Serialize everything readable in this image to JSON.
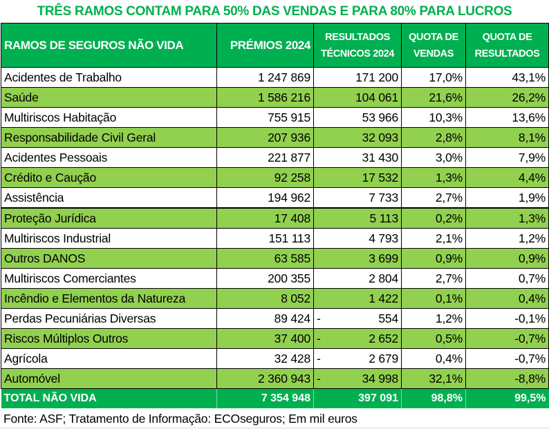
{
  "title": "TRÊS RAMOS CONTAM PARA 50% DAS VENDAS E PARA 80% PARA LUCROS",
  "table": {
    "headers": [
      "RAMOS DE SEGUROS NÃO VIDA",
      "PRÉMIOS 2024",
      "RESULTADOS TÉCNICOS 2024",
      "QUOTA DE VENDAS",
      "QUOTA DE RESULTADOS"
    ],
    "rows": [
      {
        "ramo": "Acidentes de Trabalho",
        "premios": "1 247 869",
        "resultados_sign": "",
        "resultados": "171 200",
        "quota_vendas": "17,0%",
        "quota_resultados": "43,1%"
      },
      {
        "ramo": "Saúde",
        "premios": "1 586 216",
        "resultados_sign": "",
        "resultados": "104 061",
        "quota_vendas": "21,6%",
        "quota_resultados": "26,2%"
      },
      {
        "ramo": "Multiriscos Habitação",
        "premios": "755 915",
        "resultados_sign": "",
        "resultados": "53 966",
        "quota_vendas": "10,3%",
        "quota_resultados": "13,6%"
      },
      {
        "ramo": "Responsabilidade Civil Geral",
        "premios": "207 936",
        "resultados_sign": "",
        "resultados": "32 093",
        "quota_vendas": "2,8%",
        "quota_resultados": "8,1%"
      },
      {
        "ramo": "Acidentes Pessoais",
        "premios": "221 877",
        "resultados_sign": "",
        "resultados": "31 430",
        "quota_vendas": "3,0%",
        "quota_resultados": "7,9%"
      },
      {
        "ramo": "Crédito e Caução",
        "premios": "92 258",
        "resultados_sign": "",
        "resultados": "17 532",
        "quota_vendas": "1,3%",
        "quota_resultados": "4,4%"
      },
      {
        "ramo": "Assistência",
        "premios": "194 962",
        "resultados_sign": "",
        "resultados": "7 733",
        "quota_vendas": "2,7%",
        "quota_resultados": "1,9%"
      },
      {
        "ramo": "Proteção Jurídica",
        "premios": "17 408",
        "resultados_sign": "",
        "resultados": "5 113",
        "quota_vendas": "0,2%",
        "quota_resultados": "1,3%"
      },
      {
        "ramo": "Multiriscos Industrial",
        "premios": "151 113",
        "resultados_sign": "",
        "resultados": "4 793",
        "quota_vendas": "2,1%",
        "quota_resultados": "1,2%"
      },
      {
        "ramo": "Outros DANOS",
        "premios": "63 585",
        "resultados_sign": "",
        "resultados": "3 699",
        "quota_vendas": "0,9%",
        "quota_resultados": "0,9%"
      },
      {
        "ramo": "Multiriscos Comerciantes",
        "premios": "200 355",
        "resultados_sign": "",
        "resultados": "2 804",
        "quota_vendas": "2,7%",
        "quota_resultados": "0,7%"
      },
      {
        "ramo": "Incêndio e Elementos da Natureza",
        "premios": "8 052",
        "resultados_sign": "",
        "resultados": "1 422",
        "quota_vendas": "0,1%",
        "quota_resultados": "0,4%"
      },
      {
        "ramo": "Perdas Pecuniárias Diversas",
        "premios": "89 424",
        "resultados_sign": "-",
        "resultados": "554",
        "quota_vendas": "1,2%",
        "quota_resultados": "-0,1%"
      },
      {
        "ramo": "Riscos Múltiplos Outros",
        "premios": "37 400",
        "resultados_sign": "-",
        "resultados": "2 652",
        "quota_vendas": "0,5%",
        "quota_resultados": "-0,7%"
      },
      {
        "ramo": "Agrícola",
        "premios": "32 428",
        "resultados_sign": "-",
        "resultados": "2 679",
        "quota_vendas": "0,4%",
        "quota_resultados": "-0,7%"
      },
      {
        "ramo": "Automóvel",
        "premios": "2 360 943",
        "resultados_sign": "-",
        "resultados": "34 998",
        "quota_vendas": "32,1%",
        "quota_resultados": "-8,8%"
      }
    ],
    "total": {
      "ramo": "TOTAL NÃO VIDA",
      "premios": "7 354 948",
      "resultados": "397 091",
      "quota_vendas": "98,8%",
      "quota_resultados": "99,5%"
    }
  },
  "footer": "Fonte: ASF; Tratamento de Informação: ECOseguros; Em mil euros",
  "colors": {
    "title_green": "#00b050",
    "header_green": "#00b050",
    "row_light_green": "#92d050",
    "row_white": "#ffffff"
  }
}
